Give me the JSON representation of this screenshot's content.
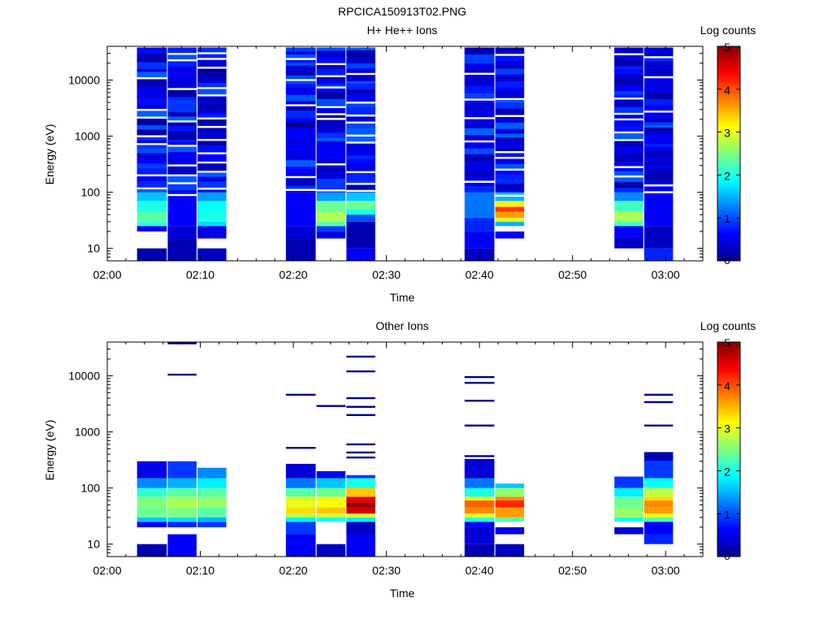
{
  "figure": {
    "title": "RPCICA150913T02.PNG"
  },
  "colors": {
    "colormap": [
      "#00008f",
      "#0000ff",
      "#0080ff",
      "#00ffff",
      "#80ff80",
      "#ffff00",
      "#ff8000",
      "#ff0000",
      "#800000"
    ]
  },
  "chart_data": [
    {
      "type": "heatmap",
      "title": "H+ He++ Ions",
      "xlabel": "Time",
      "ylabel": "Energy (eV)",
      "xticks": [
        "02:00",
        "02:10",
        "02:20",
        "02:30",
        "02:40",
        "02:50",
        "03:00"
      ],
      "xlim_min": [
        0,
        64
      ],
      "ylim": [
        6,
        40000
      ],
      "yscale": "log",
      "yticks": [
        10,
        100,
        1000,
        10000
      ],
      "colorbar": {
        "label": "Log counts",
        "ticks": [
          "0",
          "1",
          "2",
          "3",
          "4",
          "5"
        ],
        "range": [
          0,
          5
        ]
      },
      "columns": [
        {
          "t0": 3.2,
          "t1": 6.4,
          "emin": 6,
          "emax": 38000,
          "bands": [
            [
              6,
              10,
              0.2
            ],
            [
              10,
              20,
              -1
            ],
            [
              20,
              25,
              0.6
            ],
            [
              25,
              30,
              2.1
            ],
            [
              30,
              45,
              2.3
            ],
            [
              45,
              70,
              2.0
            ],
            [
              70,
              100,
              1.6
            ],
            [
              100,
              38000,
              0.7
            ]
          ]
        },
        {
          "t0": 6.5,
          "t1": 9.6,
          "emin": 6,
          "emax": 38000,
          "bands": [
            [
              6,
              15,
              0.2
            ],
            [
              15,
              25,
              0.4
            ],
            [
              25,
              100,
              0.6
            ],
            [
              100,
              38000,
              0.8
            ]
          ]
        },
        {
          "t0": 9.7,
          "t1": 12.8,
          "emin": 6,
          "emax": 38000,
          "bands": [
            [
              6,
              10,
              0.3
            ],
            [
              10,
              15,
              -1
            ],
            [
              15,
              25,
              0.5
            ],
            [
              25,
              30,
              1.7
            ],
            [
              30,
              45,
              2.0
            ],
            [
              45,
              70,
              1.9
            ],
            [
              70,
              100,
              1.4
            ],
            [
              100,
              38000,
              0.6
            ]
          ]
        },
        {
          "t0": 19.2,
          "t1": 22.4,
          "emin": 6,
          "emax": 38000,
          "bands": [
            [
              6,
              15,
              0.2
            ],
            [
              15,
              25,
              0.4
            ],
            [
              25,
              100,
              0.6
            ],
            [
              100,
              38000,
              0.8
            ]
          ]
        },
        {
          "t0": 22.5,
          "t1": 25.6,
          "emin": 6,
          "emax": 38000,
          "bands": [
            [
              6,
              15,
              -1
            ],
            [
              15,
              20,
              0.5
            ],
            [
              20,
              25,
              0.9
            ],
            [
              25,
              30,
              2.3
            ],
            [
              30,
              45,
              2.7
            ],
            [
              45,
              70,
              2.4
            ],
            [
              70,
              100,
              1.4
            ],
            [
              100,
              38000,
              0.6
            ]
          ]
        },
        {
          "t0": 25.7,
          "t1": 28.8,
          "emin": 6,
          "emax": 38000,
          "bands": [
            [
              6,
              10,
              0.6
            ],
            [
              10,
              30,
              0.2
            ],
            [
              30,
              40,
              1.0
            ],
            [
              40,
              50,
              2.0
            ],
            [
              50,
              70,
              2.4
            ],
            [
              70,
              100,
              1.6
            ],
            [
              100,
              38000,
              0.8
            ]
          ]
        },
        {
          "t0": 38.4,
          "t1": 41.6,
          "emin": 6,
          "emax": 38000,
          "bands": [
            [
              6,
              10,
              0.3
            ],
            [
              10,
              20,
              0.6
            ],
            [
              20,
              35,
              0.8
            ],
            [
              35,
              100,
              1.2
            ],
            [
              100,
              38000,
              0.7
            ]
          ]
        },
        {
          "t0": 41.7,
          "t1": 44.8,
          "emin": 6,
          "emax": 38000,
          "bands": [
            [
              6,
              15,
              -1
            ],
            [
              15,
              20,
              0.6
            ],
            [
              20,
              25,
              -1
            ],
            [
              25,
              30,
              1.5
            ],
            [
              30,
              35,
              3.0
            ],
            [
              35,
              45,
              3.6
            ],
            [
              45,
              55,
              4.1
            ],
            [
              55,
              70,
              3.2
            ],
            [
              70,
              100,
              1.5
            ],
            [
              100,
              38000,
              0.6
            ]
          ]
        },
        {
          "t0": 54.5,
          "t1": 57.6,
          "emin": 6,
          "emax": 38000,
          "bands": [
            [
              6,
              10,
              -1
            ],
            [
              10,
              15,
              0.3
            ],
            [
              15,
              25,
              0.6
            ],
            [
              25,
              30,
              2.2
            ],
            [
              30,
              45,
              2.7
            ],
            [
              45,
              70,
              2.2
            ],
            [
              70,
              100,
              1.3
            ],
            [
              100,
              38000,
              0.6
            ]
          ]
        },
        {
          "t0": 57.7,
          "t1": 60.8,
          "emin": 6,
          "emax": 38000,
          "bands": [
            [
              6,
              10,
              0.8
            ],
            [
              10,
              25,
              0.3
            ],
            [
              25,
              100,
              0.6
            ],
            [
              100,
              38000,
              0.8
            ]
          ]
        }
      ]
    },
    {
      "type": "heatmap",
      "title": "Other Ions",
      "xlabel": "Time",
      "ylabel": "Energy (eV)",
      "xticks": [
        "02:00",
        "02:10",
        "02:20",
        "02:30",
        "02:40",
        "02:50",
        "03:00"
      ],
      "xlim_min": [
        0,
        64
      ],
      "ylim": [
        6,
        40000
      ],
      "yscale": "log",
      "yticks": [
        10,
        100,
        1000,
        10000
      ],
      "colorbar": {
        "label": "Log counts",
        "ticks": [
          "0",
          "1",
          "2",
          "3",
          "4",
          "5"
        ],
        "range": [
          0,
          5
        ]
      },
      "columns": [
        {
          "t0": 3.2,
          "t1": 6.4,
          "emin": 6,
          "emax": 300,
          "bands": [
            [
              6,
              10,
              0.2
            ],
            [
              10,
              20,
              -1
            ],
            [
              20,
              25,
              0.6
            ],
            [
              25,
              30,
              1.6
            ],
            [
              30,
              45,
              2.4
            ],
            [
              45,
              70,
              2.5
            ],
            [
              70,
              100,
              2.1
            ],
            [
              100,
              150,
              1.3
            ],
            [
              150,
              300,
              0.5
            ]
          ]
        },
        {
          "t0": 6.5,
          "t1": 9.6,
          "emin": 6,
          "emax": 300,
          "bands": [
            [
              6,
              15,
              0.6
            ],
            [
              15,
              20,
              -1
            ],
            [
              20,
              25,
              0.8
            ],
            [
              25,
              30,
              1.7
            ],
            [
              30,
              45,
              2.5
            ],
            [
              45,
              70,
              2.7
            ],
            [
              70,
              100,
              2.3
            ],
            [
              100,
              150,
              1.5
            ],
            [
              150,
              300,
              0.9
            ]
          ]
        },
        {
          "t0": 9.7,
          "t1": 12.8,
          "emin": 20,
          "emax": 230,
          "bands": [
            [
              20,
              25,
              0.9
            ],
            [
              25,
              30,
              1.5
            ],
            [
              30,
              45,
              2.3
            ],
            [
              45,
              70,
              2.6
            ],
            [
              70,
              100,
              2.3
            ],
            [
              100,
              150,
              1.8
            ],
            [
              150,
              230,
              1.3
            ]
          ]
        },
        {
          "t0": 19.2,
          "t1": 22.4,
          "emin": 6,
          "emax": 270,
          "bands": [
            [
              6,
              15,
              0.6
            ],
            [
              15,
              25,
              0.9
            ],
            [
              25,
              30,
              1.8
            ],
            [
              30,
              35,
              2.8
            ],
            [
              35,
              45,
              3.3
            ],
            [
              45,
              70,
              3.0
            ],
            [
              70,
              100,
              2.3
            ],
            [
              100,
              150,
              1.2
            ],
            [
              150,
              270,
              0.4
            ]
          ]
        },
        {
          "t0": 22.5,
          "t1": 25.6,
          "emin": 6,
          "emax": 200,
          "bands": [
            [
              6,
              10,
              0.3
            ],
            [
              10,
              25,
              -1
            ],
            [
              25,
              30,
              1.9
            ],
            [
              30,
              35,
              2.9
            ],
            [
              35,
              45,
              3.4
            ],
            [
              45,
              70,
              3.1
            ],
            [
              70,
              100,
              2.4
            ],
            [
              100,
              150,
              1.6
            ],
            [
              150,
              200,
              0.6
            ]
          ]
        },
        {
          "t0": 25.7,
          "t1": 28.8,
          "emin": 6,
          "emax": 170,
          "bands": [
            [
              6,
              15,
              0.6
            ],
            [
              15,
              25,
              0.3
            ],
            [
              25,
              30,
              1.8
            ],
            [
              30,
              35,
              2.9
            ],
            [
              35,
              45,
              4.6
            ],
            [
              45,
              55,
              4.9
            ],
            [
              55,
              70,
              4.5
            ],
            [
              70,
              100,
              3.4
            ],
            [
              100,
              150,
              2.0
            ],
            [
              150,
              170,
              0.9
            ]
          ]
        },
        {
          "t0": 38.4,
          "t1": 41.6,
          "emin": 6,
          "emax": 330,
          "bands": [
            [
              6,
              10,
              0.2
            ],
            [
              10,
              20,
              0.4
            ],
            [
              20,
              25,
              0.6
            ],
            [
              25,
              30,
              2.1
            ],
            [
              30,
              35,
              2.9
            ],
            [
              35,
              45,
              3.7
            ],
            [
              45,
              60,
              3.9
            ],
            [
              60,
              70,
              3.0
            ],
            [
              70,
              100,
              2.0
            ],
            [
              100,
              150,
              1.2
            ],
            [
              150,
              330,
              0.4
            ]
          ]
        },
        {
          "t0": 41.7,
          "t1": 44.8,
          "emin": 6,
          "emax": 120,
          "bands": [
            [
              6,
              10,
              0.3
            ],
            [
              10,
              15,
              -1
            ],
            [
              15,
              20,
              0.5
            ],
            [
              20,
              25,
              -1
            ],
            [
              25,
              30,
              2.3
            ],
            [
              30,
              45,
              3.6
            ],
            [
              45,
              60,
              4.2
            ],
            [
              60,
              70,
              3.7
            ],
            [
              70,
              100,
              2.6
            ],
            [
              100,
              120,
              1.6
            ]
          ]
        },
        {
          "t0": 54.5,
          "t1": 57.6,
          "emin": 15,
          "emax": 160,
          "bands": [
            [
              15,
              20,
              0.4
            ],
            [
              20,
              25,
              -1
            ],
            [
              25,
              30,
              2.0
            ],
            [
              30,
              45,
              2.6
            ],
            [
              45,
              70,
              2.4
            ],
            [
              70,
              100,
              1.8
            ],
            [
              100,
              160,
              0.9
            ]
          ]
        },
        {
          "t0": 57.7,
          "t1": 60.8,
          "emin": 10,
          "emax": 420,
          "bands": [
            [
              10,
              15,
              0.8
            ],
            [
              15,
              25,
              0.6
            ],
            [
              25,
              30,
              2.3
            ],
            [
              30,
              35,
              3.0
            ],
            [
              35,
              45,
              3.6
            ],
            [
              45,
              60,
              3.7
            ],
            [
              60,
              70,
              3.3
            ],
            [
              70,
              100,
              2.8
            ],
            [
              100,
              150,
              1.9
            ],
            [
              150,
              300,
              0.9
            ],
            [
              300,
              420,
              0.4
            ]
          ]
        }
      ],
      "lines": [
        [
          6.5,
          9.6,
          38000
        ],
        [
          6.5,
          9.6,
          10500
        ],
        [
          19.2,
          22.4,
          4600
        ],
        [
          19.2,
          22.4,
          520
        ],
        [
          22.5,
          25.6,
          2900
        ],
        [
          25.7,
          28.8,
          22000
        ],
        [
          25.7,
          28.8,
          12000
        ],
        [
          25.7,
          28.8,
          4000
        ],
        [
          25.7,
          28.8,
          2800
        ],
        [
          25.7,
          28.8,
          2000
        ],
        [
          25.7,
          28.8,
          600
        ],
        [
          25.7,
          28.8,
          430
        ],
        [
          25.7,
          28.8,
          350
        ],
        [
          38.4,
          41.6,
          9500
        ],
        [
          38.4,
          41.6,
          7500
        ],
        [
          38.4,
          41.6,
          3600
        ],
        [
          38.4,
          41.6,
          1300
        ],
        [
          38.4,
          41.6,
          370
        ],
        [
          57.7,
          60.8,
          4600
        ],
        [
          57.7,
          60.8,
          3400
        ],
        [
          57.7,
          60.8,
          1300
        ],
        [
          57.7,
          60.8,
          420
        ],
        [
          57.7,
          60.8,
          360
        ]
      ]
    }
  ]
}
